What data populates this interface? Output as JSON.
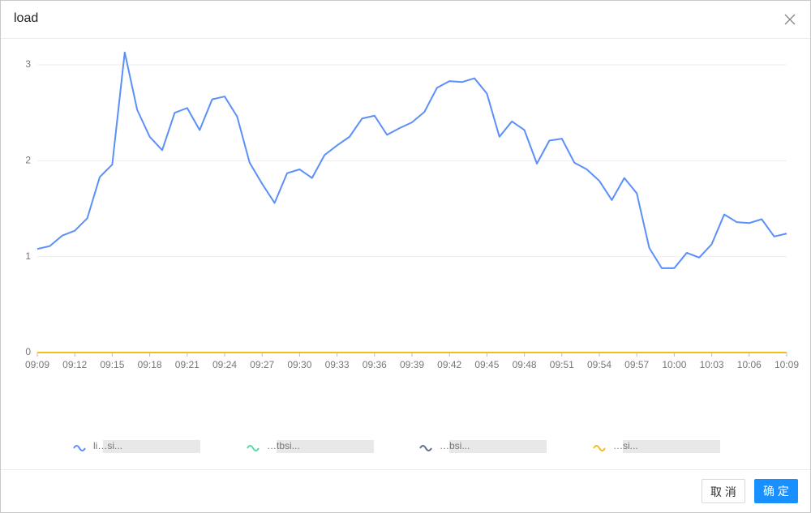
{
  "dialog": {
    "title": "load",
    "cancel": "取 消",
    "ok": "确 定"
  },
  "chart_data": {
    "type": "line",
    "categories": [
      "09:09",
      null,
      null,
      "09:12",
      null,
      null,
      "09:15",
      null,
      null,
      "09:18",
      null,
      null,
      "09:21",
      null,
      null,
      "09:24",
      null,
      null,
      "09:27",
      null,
      null,
      "09:30",
      null,
      null,
      "09:33",
      null,
      null,
      "09:36",
      null,
      null,
      "09:39",
      null,
      null,
      "09:42",
      null,
      null,
      "09:45",
      null,
      null,
      "09:48",
      null,
      null,
      "09:51",
      null,
      null,
      "09:54",
      null,
      null,
      "09:57",
      null,
      null,
      "10:00",
      null,
      null,
      "10:03",
      null,
      null,
      "10:06",
      null,
      null,
      "10:09"
    ],
    "ylim": [
      0,
      3
    ],
    "yticks": [
      0,
      1,
      2,
      3
    ],
    "grid": true,
    "legend": "bottom",
    "series": [
      {
        "name": "li…si...",
        "color": "#5b8ff9",
        "values": [
          1.08,
          1.11,
          1.22,
          1.27,
          1.4,
          1.83,
          1.96,
          3.13,
          2.53,
          2.25,
          2.11,
          2.5,
          2.55,
          2.32,
          2.64,
          2.67,
          2.46,
          1.98,
          1.76,
          1.56,
          1.87,
          1.91,
          1.82,
          2.06,
          2.16,
          2.25,
          2.44,
          2.47,
          2.27,
          2.34,
          2.4,
          2.51,
          2.76,
          2.83,
          2.82,
          2.86,
          2.7,
          2.25,
          2.41,
          2.32,
          1.97,
          2.21,
          2.23,
          1.98,
          1.91,
          1.79,
          1.59,
          1.82,
          1.66,
          1.09,
          0.88,
          0.88,
          1.04,
          0.99,
          1.13,
          1.44,
          1.36,
          1.35,
          1.39,
          1.21,
          1.24
        ]
      },
      {
        "name": "…tbsi...",
        "color": "#5ad8a6",
        "values": [
          0,
          0,
          0,
          0,
          0,
          0,
          0,
          0,
          0,
          0,
          0,
          0,
          0,
          0,
          0,
          0,
          0,
          0,
          0,
          0,
          0,
          0,
          0,
          0,
          0,
          0,
          0,
          0,
          0,
          0,
          0,
          0,
          0,
          0,
          0,
          0,
          0,
          0,
          0,
          0,
          0,
          0,
          0,
          0,
          0,
          0,
          0,
          0,
          0,
          0,
          0,
          0,
          0,
          0,
          0,
          0,
          0,
          0,
          0,
          0,
          0
        ]
      },
      {
        "name": "…bsi...",
        "color": "#5d7092",
        "values": [
          0,
          0,
          0,
          0,
          0,
          0,
          0,
          0,
          0,
          0,
          0,
          0,
          0,
          0,
          0,
          0,
          0,
          0,
          0,
          0,
          0,
          0,
          0,
          0,
          0,
          0,
          0,
          0,
          0,
          0,
          0,
          0,
          0,
          0,
          0,
          0,
          0,
          0,
          0,
          0,
          0,
          0,
          0,
          0,
          0,
          0,
          0,
          0,
          0,
          0,
          0,
          0,
          0,
          0,
          0,
          0,
          0,
          0,
          0,
          0,
          0
        ]
      },
      {
        "name": "…si...",
        "color": "#f6bd16",
        "values": [
          0,
          0,
          0,
          0,
          0,
          0,
          0,
          0,
          0,
          0,
          0,
          0,
          0,
          0,
          0,
          0,
          0,
          0,
          0,
          0,
          0,
          0,
          0,
          0,
          0,
          0,
          0,
          0,
          0,
          0,
          0,
          0,
          0,
          0,
          0,
          0,
          0,
          0,
          0,
          0,
          0,
          0,
          0,
          0,
          0,
          0,
          0,
          0,
          0,
          0,
          0,
          0,
          0,
          0,
          0,
          0,
          0,
          0,
          0,
          0,
          0
        ]
      }
    ]
  }
}
